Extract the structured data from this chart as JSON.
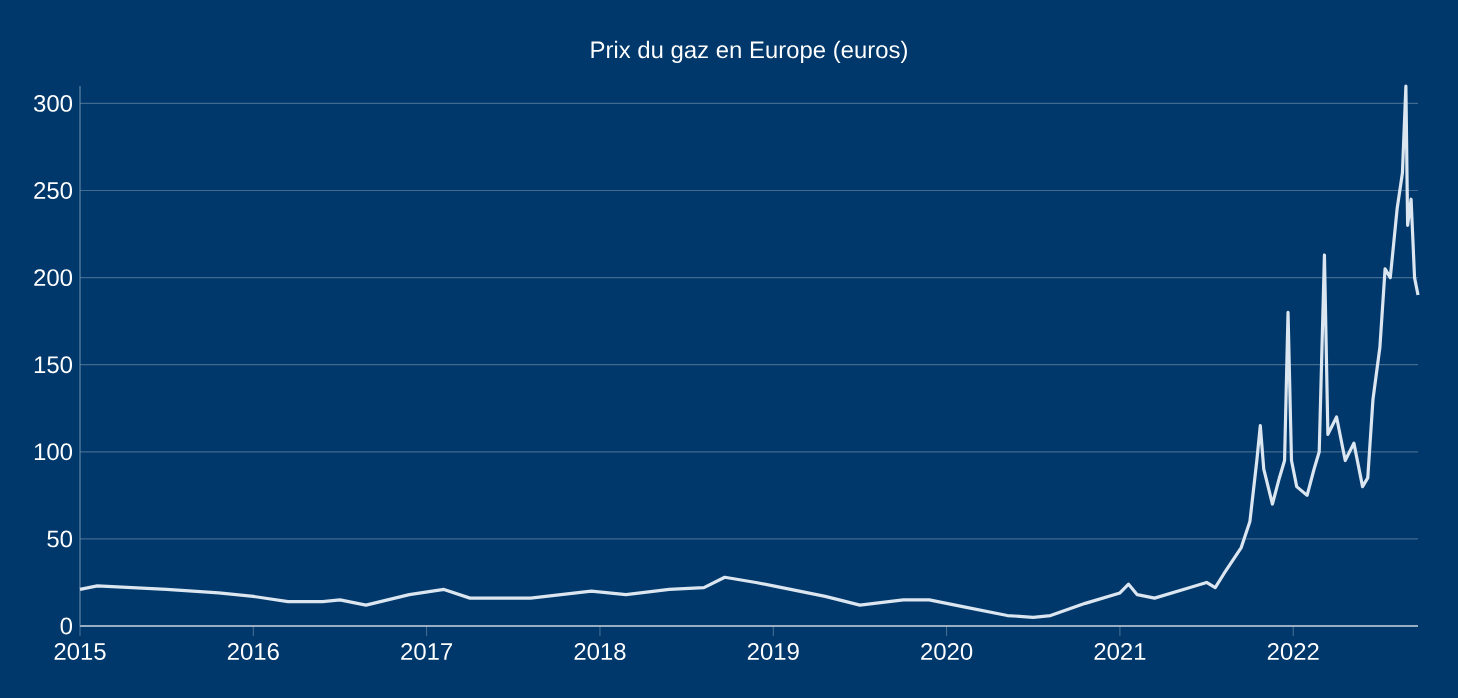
{
  "chart_data": {
    "type": "line",
    "title": "Prix du gaz en Europe (euros)",
    "x": [
      2015,
      2015.1,
      2015.3,
      2015.5,
      2015.8,
      2016.0,
      2016.2,
      2016.4,
      2016.5,
      2016.65,
      2016.9,
      2017.1,
      2017.25,
      2017.6,
      2017.95,
      2018.15,
      2018.4,
      2018.6,
      2018.72,
      2018.9,
      2019.0,
      2019.3,
      2019.5,
      2019.75,
      2019.9,
      2020.1,
      2020.35,
      2020.5,
      2020.6,
      2020.8,
      2021.0,
      2021.05,
      2021.1,
      2021.2,
      2021.4,
      2021.5,
      2021.55,
      2021.6,
      2021.7,
      2021.75,
      2021.79,
      2021.81,
      2021.83,
      2021.88,
      2021.92,
      2021.95,
      2021.97,
      2021.99,
      2022.02,
      2022.08,
      2022.12,
      2022.15,
      2022.18,
      2022.2,
      2022.25,
      2022.3,
      2022.35,
      2022.4,
      2022.43,
      2022.46,
      2022.5,
      2022.53,
      2022.56,
      2022.6,
      2022.63,
      2022.65,
      2022.66,
      2022.68,
      2022.7,
      2022.72
    ],
    "series": [
      {
        "color": "#dbe6f0",
        "values": [
          21,
          23,
          22,
          21,
          19,
          17,
          14,
          14,
          15,
          12,
          18,
          21,
          16,
          16,
          20,
          18,
          21,
          22,
          28,
          25,
          23,
          17,
          12,
          15,
          15,
          11,
          6,
          5,
          6,
          13,
          19,
          24,
          18,
          16,
          22,
          25,
          22,
          30,
          45,
          60,
          95,
          115,
          90,
          70,
          85,
          95,
          180,
          95,
          80,
          75,
          90,
          100,
          213,
          110,
          120,
          95,
          105,
          80,
          85,
          130,
          160,
          205,
          200,
          240,
          260,
          310,
          230,
          245,
          200,
          190
        ]
      }
    ],
    "xlim": [
      2015,
      2022.72
    ],
    "xticks": [
      2015,
      2016,
      2017,
      2018,
      2019,
      2020,
      2021,
      2022
    ],
    "ylim": [
      0,
      310
    ],
    "yticks": [
      0,
      50,
      100,
      150,
      200,
      250,
      300
    ],
    "grid": "y",
    "marker": "none",
    "line_style": "solid"
  }
}
